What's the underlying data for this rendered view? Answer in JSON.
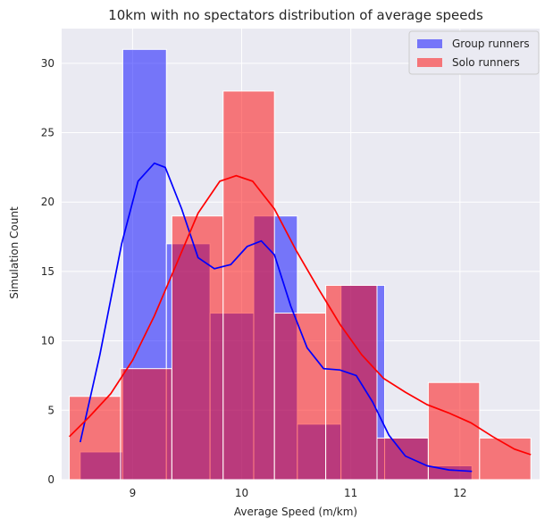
{
  "chart_data": {
    "type": "histogram",
    "title": "10km with no spectators distribution of average speeds",
    "xlabel": "Average Speed (m/km)",
    "ylabel": "Simulation Count",
    "xlim": [
      8.35,
      12.73
    ],
    "ylim": [
      0,
      32.5
    ],
    "xticks": [
      9,
      10,
      11,
      12
    ],
    "yticks": [
      0,
      5,
      10,
      15,
      20,
      25,
      30
    ],
    "grid": true,
    "legend_position": "top-right",
    "series": [
      {
        "name": "Group runners",
        "color": "#0000ff",
        "bins": [
          {
            "x0": 8.52,
            "x1": 8.91,
            "count": 2
          },
          {
            "x0": 8.91,
            "x1": 9.31,
            "count": 31
          },
          {
            "x0": 9.31,
            "x1": 9.71,
            "count": 17
          },
          {
            "x0": 9.71,
            "x1": 10.11,
            "count": 12
          },
          {
            "x0": 10.11,
            "x1": 10.51,
            "count": 19
          },
          {
            "x0": 10.51,
            "x1": 10.91,
            "count": 4
          },
          {
            "x0": 10.91,
            "x1": 11.31,
            "count": 14
          },
          {
            "x0": 11.31,
            "x1": 11.71,
            "count": 3
          },
          {
            "x0": 11.71,
            "x1": 12.11,
            "count": 1
          }
        ],
        "kde": [
          [
            8.52,
            2.7
          ],
          [
            8.7,
            9
          ],
          [
            8.9,
            17
          ],
          [
            9.05,
            21.5
          ],
          [
            9.2,
            22.8
          ],
          [
            9.3,
            22.5
          ],
          [
            9.45,
            19.5
          ],
          [
            9.6,
            16
          ],
          [
            9.75,
            15.2
          ],
          [
            9.9,
            15.5
          ],
          [
            10.05,
            16.8
          ],
          [
            10.18,
            17.2
          ],
          [
            10.3,
            16.2
          ],
          [
            10.45,
            12.5
          ],
          [
            10.6,
            9.5
          ],
          [
            10.75,
            8
          ],
          [
            10.9,
            7.9
          ],
          [
            11.05,
            7.5
          ],
          [
            11.2,
            5.6
          ],
          [
            11.35,
            3.2
          ],
          [
            11.5,
            1.7
          ],
          [
            11.7,
            1
          ],
          [
            11.9,
            0.7
          ],
          [
            12.11,
            0.6
          ]
        ]
      },
      {
        "name": "Solo runners",
        "color": "#ff0000",
        "bins": [
          {
            "x0": 8.42,
            "x1": 8.89,
            "count": 6
          },
          {
            "x0": 8.89,
            "x1": 9.36,
            "count": 8
          },
          {
            "x0": 9.36,
            "x1": 9.83,
            "count": 19
          },
          {
            "x0": 9.83,
            "x1": 10.3,
            "count": 28
          },
          {
            "x0": 10.3,
            "x1": 10.77,
            "count": 12
          },
          {
            "x0": 10.77,
            "x1": 11.24,
            "count": 14
          },
          {
            "x0": 11.24,
            "x1": 11.71,
            "count": 3
          },
          {
            "x0": 11.71,
            "x1": 12.18,
            "count": 7
          },
          {
            "x0": 12.18,
            "x1": 12.65,
            "count": 3
          }
        ],
        "kde": [
          [
            8.42,
            3.1
          ],
          [
            8.6,
            4.5
          ],
          [
            8.8,
            6.2
          ],
          [
            9.0,
            8.6
          ],
          [
            9.2,
            11.8
          ],
          [
            9.4,
            15.5
          ],
          [
            9.6,
            19.2
          ],
          [
            9.8,
            21.5
          ],
          [
            9.95,
            21.9
          ],
          [
            10.1,
            21.5
          ],
          [
            10.3,
            19.5
          ],
          [
            10.5,
            16.5
          ],
          [
            10.7,
            13.8
          ],
          [
            10.9,
            11.2
          ],
          [
            11.1,
            9
          ],
          [
            11.3,
            7.3
          ],
          [
            11.5,
            6.3
          ],
          [
            11.7,
            5.4
          ],
          [
            11.9,
            4.8
          ],
          [
            12.1,
            4.1
          ],
          [
            12.3,
            3.1
          ],
          [
            12.5,
            2.2
          ],
          [
            12.65,
            1.8
          ]
        ]
      }
    ]
  }
}
